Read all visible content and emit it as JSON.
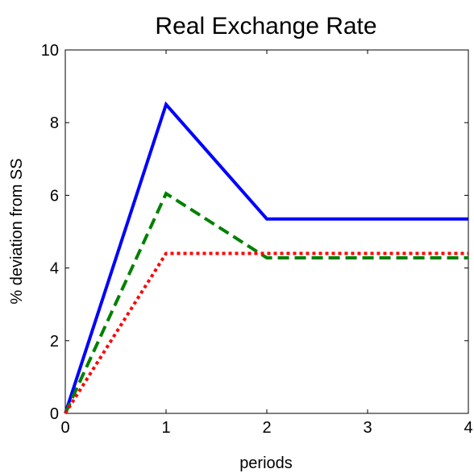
{
  "chart_data": {
    "type": "line",
    "title": "Real Exchange Rate",
    "xlabel": "periods",
    "ylabel": "% deviation from SS",
    "xlim": [
      0,
      4
    ],
    "ylim": [
      0,
      10
    ],
    "xticks": [
      0,
      1,
      2,
      3,
      4
    ],
    "yticks": [
      0,
      2,
      4,
      6,
      8,
      10
    ],
    "xtick_labels": [
      "0",
      "1",
      "2",
      "3",
      "4"
    ],
    "ytick_labels": [
      "0",
      "2",
      "4",
      "6",
      "8",
      "10"
    ],
    "grid": false,
    "x": [
      0,
      1,
      2,
      3,
      4
    ],
    "series": [
      {
        "values": [
          0,
          8.5,
          5.35,
          5.35,
          5.35
        ],
        "color": "#0000ff",
        "style": "solid"
      },
      {
        "values": [
          0,
          6.05,
          4.28,
          4.28,
          4.28
        ],
        "color": "#008000",
        "style": "dashed"
      },
      {
        "values": [
          0,
          4.4,
          4.4,
          4.4,
          4.4
        ],
        "color": "#ff0000",
        "style": "dotted"
      }
    ]
  }
}
